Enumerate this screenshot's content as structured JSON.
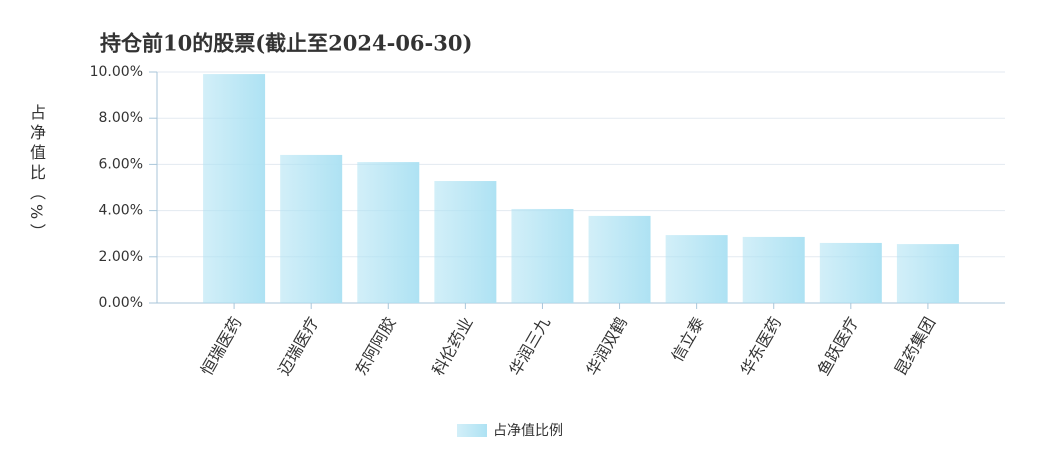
{
  "chart_data": {
    "type": "bar",
    "title": "持仓前10的股票(截止至2024-06-30)",
    "y_label": "占净值比（%）",
    "categories": [
      "恒瑞医药",
      "迈瑞医疗",
      "东阿阿胶",
      "科伦药业",
      "华润三九",
      "华润双鹤",
      "信立泰",
      "华东医药",
      "鱼跃医疗",
      "昆药集团"
    ],
    "series": [
      {
        "name": "占净值比例",
        "color": "#aee2f3",
        "values": [
          9.91,
          6.41,
          6.1,
          5.28,
          4.07,
          3.77,
          2.94,
          2.86,
          2.6,
          2.55
        ]
      }
    ],
    "ylim": [
      0,
      10
    ],
    "yticks": [
      {
        "value": 0,
        "label": "0.00%"
      },
      {
        "value": 2,
        "label": "2.00%"
      },
      {
        "value": 4,
        "label": "4.00%"
      },
      {
        "value": 6,
        "label": "6.00%"
      },
      {
        "value": 8,
        "label": "8.00%"
      },
      {
        "value": 10,
        "label": "10.00%"
      }
    ],
    "grid": true,
    "legend": "bottom"
  }
}
